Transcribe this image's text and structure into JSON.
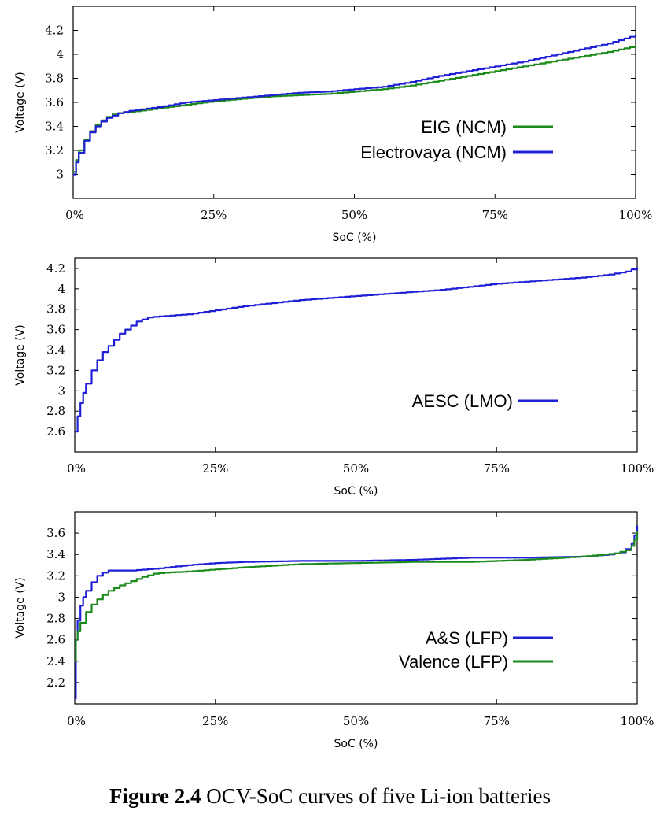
{
  "caption": {
    "label": "Figure 2.4",
    "text": "OCV-SoC curves of five Li-ion batteries"
  },
  "chart_data": [
    {
      "type": "line",
      "title": "",
      "xlabel": "SoC (%)",
      "ylabel": "Voltage (V)",
      "xlim": [
        0,
        100
      ],
      "ylim": [
        2.8,
        4.4
      ],
      "xticks": [
        "0%",
        "25%",
        "50%",
        "75%",
        "100%"
      ],
      "yticks": [
        "3",
        "3.2",
        "3.4",
        "3.6",
        "3.8",
        "4",
        "4.2"
      ],
      "legend_position": "center-right",
      "series": [
        {
          "name": "EIG (NCM)",
          "color": "#1a8a1a",
          "x": [
            0,
            0.5,
            1,
            2,
            3,
            4,
            5,
            6,
            7,
            8,
            10,
            15,
            20,
            25,
            30,
            35,
            40,
            45,
            50,
            55,
            60,
            65,
            70,
            75,
            80,
            85,
            90,
            95,
            100
          ],
          "y": [
            3.02,
            3.12,
            3.2,
            3.29,
            3.36,
            3.41,
            3.45,
            3.48,
            3.5,
            3.51,
            3.52,
            3.55,
            3.58,
            3.61,
            3.63,
            3.65,
            3.66,
            3.67,
            3.69,
            3.71,
            3.74,
            3.78,
            3.82,
            3.86,
            3.9,
            3.94,
            3.98,
            4.02,
            4.07
          ]
        },
        {
          "name": "Electrovaya (NCM)",
          "color": "#1f1fd6",
          "x": [
            0,
            0.5,
            1,
            2,
            3,
            4,
            5,
            6,
            7,
            8,
            10,
            15,
            20,
            25,
            30,
            35,
            40,
            45,
            50,
            55,
            60,
            65,
            70,
            75,
            80,
            85,
            90,
            95,
            100
          ],
          "y": [
            3.0,
            3.1,
            3.18,
            3.28,
            3.35,
            3.4,
            3.44,
            3.47,
            3.49,
            3.51,
            3.53,
            3.56,
            3.6,
            3.62,
            3.64,
            3.66,
            3.68,
            3.69,
            3.71,
            3.73,
            3.77,
            3.82,
            3.86,
            3.9,
            3.94,
            3.99,
            4.04,
            4.09,
            4.16
          ]
        }
      ]
    },
    {
      "type": "line",
      "title": "",
      "xlabel": "SoC (%)",
      "ylabel": "Voltage (V)",
      "xlim": [
        0,
        100
      ],
      "ylim": [
        2.4,
        4.3
      ],
      "xticks": [
        "0%",
        "25%",
        "50%",
        "75%",
        "100%"
      ],
      "yticks": [
        "2.6",
        "2.8",
        "3",
        "3.2",
        "3.4",
        "3.6",
        "3.8",
        "4",
        "4.2"
      ],
      "legend_position": "center-right",
      "series": [
        {
          "name": "AESC (LMO)",
          "color": "#1f1fd6",
          "x": [
            0,
            0.5,
            1,
            1.5,
            2,
            3,
            4,
            5,
            6,
            7,
            8,
            9,
            10,
            11,
            12,
            13,
            15,
            20,
            25,
            30,
            35,
            40,
            45,
            50,
            55,
            60,
            65,
            70,
            75,
            80,
            85,
            90,
            95,
            98,
            100
          ],
          "y": [
            2.6,
            2.75,
            2.88,
            2.98,
            3.07,
            3.2,
            3.3,
            3.38,
            3.44,
            3.5,
            3.56,
            3.6,
            3.64,
            3.68,
            3.7,
            3.72,
            3.73,
            3.75,
            3.79,
            3.83,
            3.86,
            3.89,
            3.91,
            3.93,
            3.95,
            3.97,
            3.99,
            4.02,
            4.05,
            4.07,
            4.09,
            4.11,
            4.14,
            4.17,
            4.21
          ]
        }
      ]
    },
    {
      "type": "line",
      "title": "",
      "xlabel": "SoC (%)",
      "ylabel": "Voltage (V)",
      "xlim": [
        0,
        100
      ],
      "ylim": [
        2.0,
        3.8
      ],
      "xticks": [
        "0%",
        "25%",
        "50%",
        "75%",
        "100%"
      ],
      "yticks": [
        "2.2",
        "2.4",
        "2.6",
        "2.8",
        "3",
        "3.2",
        "3.4",
        "3.6"
      ],
      "legend_position": "lower-right",
      "series": [
        {
          "name": "A&S (LFP)",
          "color": "#1f1fd6",
          "x": [
            0,
            0.2,
            0.5,
            1,
            1.5,
            2,
            3,
            4,
            5,
            6,
            7,
            8,
            10,
            15,
            20,
            25,
            30,
            40,
            50,
            60,
            70,
            80,
            90,
            95,
            97,
            98,
            99,
            99.5,
            100
          ],
          "y": [
            2.05,
            2.6,
            2.78,
            2.92,
            3.0,
            3.06,
            3.14,
            3.2,
            3.23,
            3.25,
            3.25,
            3.25,
            3.25,
            3.27,
            3.3,
            3.32,
            3.33,
            3.34,
            3.34,
            3.35,
            3.37,
            3.37,
            3.38,
            3.4,
            3.42,
            3.45,
            3.5,
            3.58,
            3.67
          ]
        },
        {
          "name": "Valence (LFP)",
          "color": "#1a8a1a",
          "x": [
            0,
            0.2,
            0.5,
            1,
            2,
            3,
            4,
            5,
            6,
            8,
            10,
            12,
            14,
            16,
            20,
            25,
            30,
            40,
            50,
            60,
            70,
            80,
            90,
            94,
            96,
            98,
            99,
            99.5,
            100
          ],
          "y": [
            2.4,
            2.6,
            2.68,
            2.76,
            2.86,
            2.93,
            2.98,
            3.02,
            3.06,
            3.11,
            3.15,
            3.19,
            3.22,
            3.23,
            3.24,
            3.26,
            3.28,
            3.31,
            3.32,
            3.33,
            3.33,
            3.35,
            3.38,
            3.4,
            3.41,
            3.44,
            3.48,
            3.54,
            3.62
          ]
        }
      ]
    }
  ]
}
